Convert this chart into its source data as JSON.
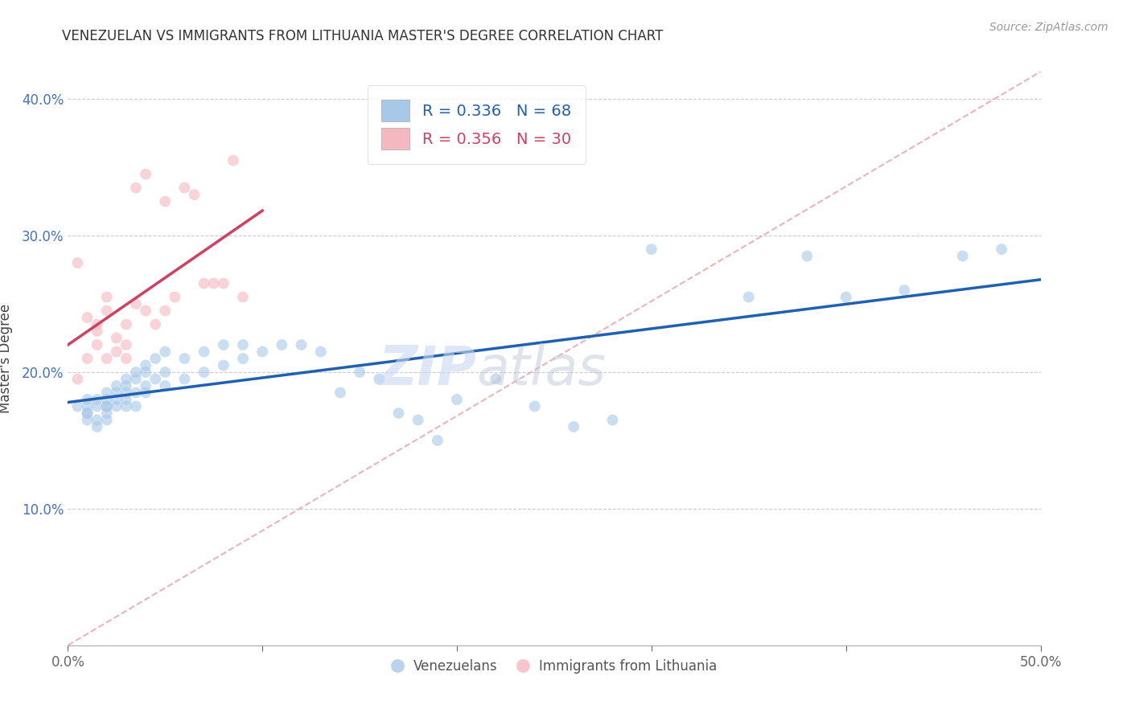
{
  "title": "VENEZUELAN VS IMMIGRANTS FROM LITHUANIA MASTER'S DEGREE CORRELATION CHART",
  "source_text": "Source: ZipAtlas.com",
  "ylabel": "Master's Degree",
  "x_min": 0.0,
  "x_max": 0.5,
  "y_min": 0.0,
  "y_max": 0.42,
  "x_ticks": [
    0.0,
    0.1,
    0.2,
    0.3,
    0.4,
    0.5
  ],
  "x_tick_labels": [
    "0.0%",
    "",
    "",
    "",
    "",
    "50.0%"
  ],
  "y_ticks": [
    0.0,
    0.1,
    0.2,
    0.3,
    0.4
  ],
  "y_tick_labels": [
    "",
    "10.0%",
    "20.0%",
    "30.0%",
    "40.0%"
  ],
  "legend_blue_r": "R = 0.336",
  "legend_blue_n": "N = 68",
  "legend_pink_r": "R = 0.356",
  "legend_pink_n": "N = 30",
  "blue_color": "#a8c8e8",
  "pink_color": "#f4b8c0",
  "blue_line_color": "#2060b0",
  "pink_line_color": "#d04060",
  "diag_color": "#e8a0a8",
  "scatter_alpha": 0.6,
  "scatter_size": 100,
  "venezuelan_x": [
    0.005,
    0.01,
    0.01,
    0.01,
    0.01,
    0.01,
    0.015,
    0.015,
    0.015,
    0.015,
    0.02,
    0.02,
    0.02,
    0.02,
    0.02,
    0.02,
    0.025,
    0.025,
    0.025,
    0.025,
    0.03,
    0.03,
    0.03,
    0.03,
    0.03,
    0.035,
    0.035,
    0.035,
    0.035,
    0.04,
    0.04,
    0.04,
    0.04,
    0.045,
    0.045,
    0.05,
    0.05,
    0.05,
    0.06,
    0.06,
    0.07,
    0.07,
    0.08,
    0.08,
    0.09,
    0.09,
    0.1,
    0.11,
    0.12,
    0.13,
    0.14,
    0.15,
    0.16,
    0.17,
    0.18,
    0.19,
    0.2,
    0.22,
    0.24,
    0.26,
    0.28,
    0.3,
    0.35,
    0.38,
    0.4,
    0.43,
    0.46,
    0.48
  ],
  "venezuelan_y": [
    0.175,
    0.18,
    0.17,
    0.175,
    0.165,
    0.17,
    0.18,
    0.175,
    0.165,
    0.16,
    0.185,
    0.175,
    0.18,
    0.165,
    0.175,
    0.17,
    0.19,
    0.185,
    0.175,
    0.18,
    0.195,
    0.185,
    0.19,
    0.18,
    0.175,
    0.2,
    0.195,
    0.185,
    0.175,
    0.205,
    0.19,
    0.2,
    0.185,
    0.21,
    0.195,
    0.215,
    0.2,
    0.19,
    0.21,
    0.195,
    0.215,
    0.2,
    0.22,
    0.205,
    0.22,
    0.21,
    0.215,
    0.22,
    0.22,
    0.215,
    0.185,
    0.2,
    0.195,
    0.17,
    0.165,
    0.15,
    0.18,
    0.195,
    0.175,
    0.16,
    0.165,
    0.29,
    0.255,
    0.285,
    0.255,
    0.26,
    0.285,
    0.29
  ],
  "lithuania_x": [
    0.005,
    0.005,
    0.01,
    0.01,
    0.015,
    0.015,
    0.015,
    0.02,
    0.02,
    0.02,
    0.025,
    0.025,
    0.03,
    0.03,
    0.03,
    0.035,
    0.035,
    0.04,
    0.04,
    0.045,
    0.05,
    0.05,
    0.055,
    0.06,
    0.065,
    0.07,
    0.075,
    0.08,
    0.085,
    0.09
  ],
  "lithuania_y": [
    0.28,
    0.195,
    0.24,
    0.21,
    0.235,
    0.23,
    0.22,
    0.255,
    0.245,
    0.21,
    0.215,
    0.225,
    0.235,
    0.22,
    0.21,
    0.25,
    0.335,
    0.245,
    0.345,
    0.235,
    0.325,
    0.245,
    0.255,
    0.335,
    0.33,
    0.265,
    0.265,
    0.265,
    0.355,
    0.255
  ],
  "watermark_zip": "ZIP",
  "watermark_atlas": "atlas",
  "background_color": "#ffffff",
  "grid_color": "#cccccc"
}
